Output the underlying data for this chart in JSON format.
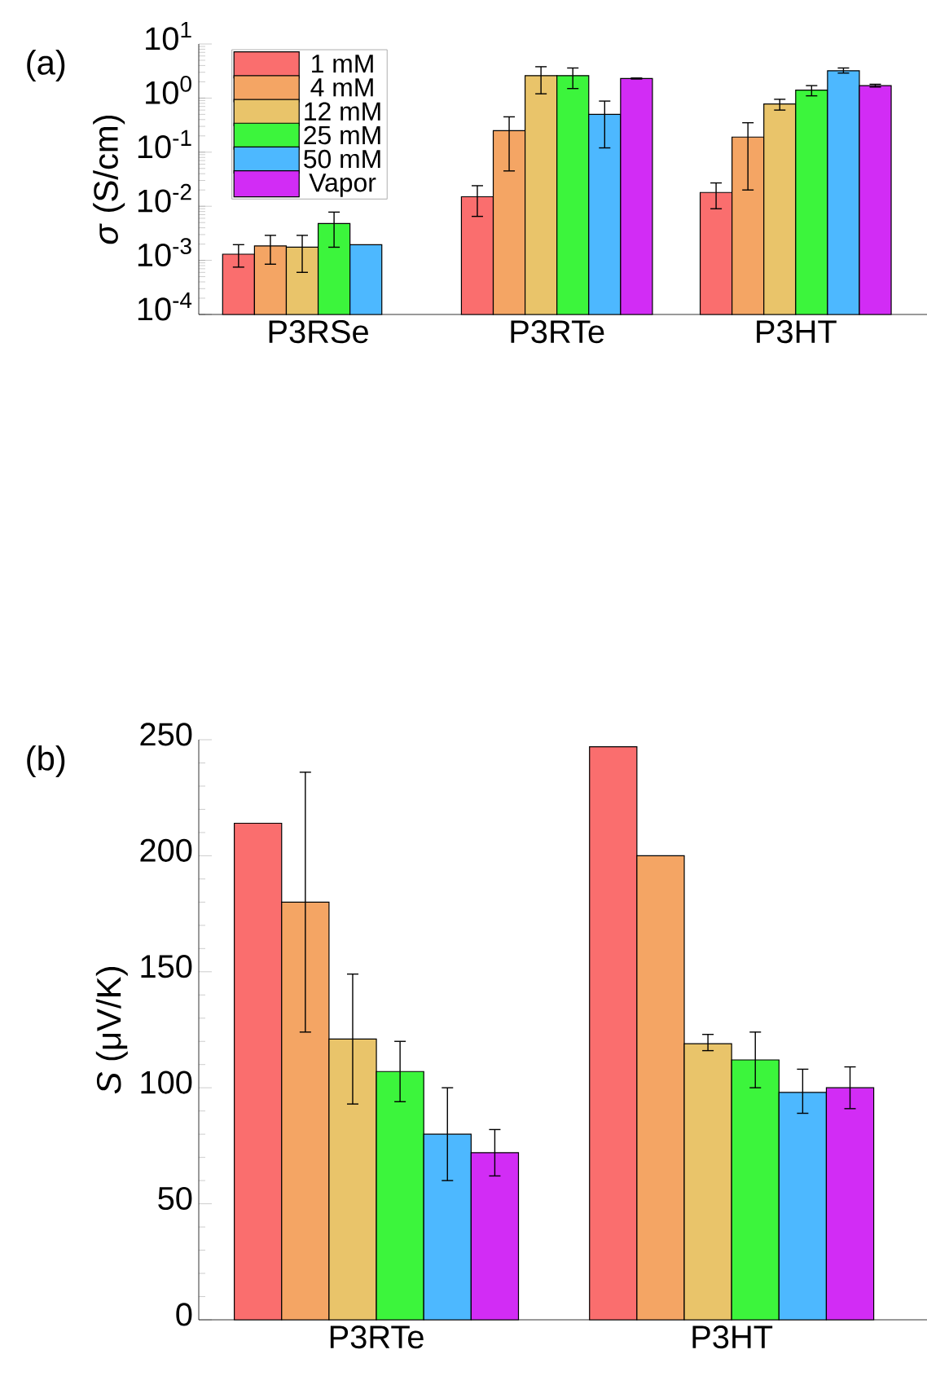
{
  "chart_data": [
    {
      "type": "bar",
      "ylabel": "*σ* (S/cm)",
      "annotations": [
        "(a)"
      ],
      "categories": [
        "P3RSe",
        "P3RTe",
        "P3HT"
      ],
      "log": true,
      "ylim": [
        0.0001,
        10
      ],
      "yticks": [
        {
          "value": 0.0001,
          "label": "10$^{-4}$"
        },
        {
          "value": 0.001,
          "label": "10$^{-3}$"
        },
        {
          "value": 0.01,
          "label": "10$^{-2}$"
        },
        {
          "value": 0.1,
          "label": "10$^{-1}$"
        },
        {
          "value": 1,
          "label": "10$^{0}$"
        },
        {
          "value": 10,
          "label": "10$^{1}$"
        }
      ],
      "legend": "top left",
      "series": [
        {
          "name": "1 mM",
          "color": "#fa6e6e",
          "values": [
            0.0013,
            0.015,
            0.018
          ],
          "errors": [
            [
              0.00075,
              0.00195
            ],
            [
              0.0065,
              0.024
            ],
            [
              0.009,
              0.027
            ]
          ]
        },
        {
          "name": "4 mM",
          "color": "#f4a564",
          "values": [
            0.00185,
            0.25,
            0.19
          ],
          "errors": [
            [
              0.00085,
              0.0029
            ],
            [
              0.045,
              0.45
            ],
            [
              0.02,
              0.35
            ]
          ]
        },
        {
          "name": "12 mM",
          "color": "#e9c46a",
          "values": [
            0.00175,
            2.6,
            0.78
          ],
          "errors": [
            [
              0.0006,
              0.0029
            ],
            [
              1.2,
              3.8
            ],
            [
              0.6,
              0.95
            ]
          ]
        },
        {
          "name": "25 mM",
          "color": "#3cf53c",
          "values": [
            0.0048,
            2.6,
            1.4
          ],
          "errors": [
            [
              0.00175,
              0.0078
            ],
            [
              1.5,
              3.6
            ],
            [
              1.1,
              1.7
            ]
          ]
        },
        {
          "name": "50 mM",
          "color": "#4db8ff",
          "values": [
            0.00195,
            0.5,
            3.2
          ],
          "errors": [
            null,
            [
              0.12,
              0.88
            ],
            [
              2.9,
              3.6
            ]
          ]
        },
        {
          "name": "Vapor",
          "color": "#d22cf5",
          "values": [
            null,
            2.3,
            1.7
          ],
          "errors": [
            null,
            [
              2.25,
              2.35
            ],
            [
              1.6,
              1.8
            ]
          ]
        }
      ]
    },
    {
      "type": "bar",
      "ylabel": "*S* (μV/K)",
      "annotations": [
        "(b)"
      ],
      "categories": [
        "P3RTe",
        "P3HT"
      ],
      "ylim": [
        0,
        250
      ],
      "yticks": [
        0,
        50,
        100,
        150,
        200,
        250
      ],
      "series": [
        {
          "color": "#fa6e6e",
          "values": [
            214,
            247
          ],
          "errors": [
            null,
            null
          ]
        },
        {
          "color": "#f4a564",
          "values": [
            180,
            200
          ],
          "errors": [
            [
              124,
              236
            ],
            null
          ]
        },
        {
          "color": "#e9c46a",
          "values": [
            121,
            119
          ],
          "errors": [
            [
              93,
              149
            ],
            [
              116,
              123
            ]
          ]
        },
        {
          "color": "#3cf53c",
          "values": [
            107,
            112
          ],
          "errors": [
            [
              94,
              120
            ],
            [
              100,
              124
            ]
          ]
        },
        {
          "color": "#4db8ff",
          "values": [
            80,
            98
          ],
          "errors": [
            [
              60,
              100
            ],
            [
              89,
              108
            ]
          ]
        },
        {
          "color": "#d22cf5",
          "values": [
            72,
            100
          ],
          "errors": [
            [
              62,
              82
            ],
            [
              91,
              109
            ]
          ]
        }
      ]
    }
  ]
}
